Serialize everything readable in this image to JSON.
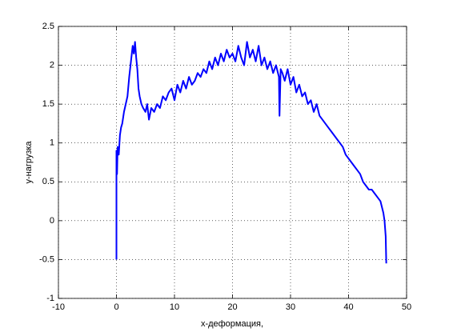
{
  "chart_data": {
    "type": "line",
    "xlabel": "x-деформация,",
    "ylabel": "y-нагрузка",
    "xlim": [
      -10,
      50
    ],
    "xticks": [
      -10,
      0,
      10,
      20,
      30,
      40,
      50
    ],
    "ylim": [
      -1,
      2.5
    ],
    "yticks": [
      -1,
      -0.5,
      0,
      0.5,
      1,
      1.5,
      2,
      2.5
    ],
    "grid": true,
    "x": [
      0,
      0,
      0.1,
      0.2,
      0.4,
      0.6,
      0.8,
      1.0,
      1.3,
      1.6,
      1.9,
      2.2,
      2.5,
      2.8,
      3.0,
      3.2,
      3.4,
      3.6,
      3.8,
      4.0,
      4.3,
      4.6,
      5.0,
      5.3,
      5.6,
      6.0,
      6.5,
      7,
      7.5,
      8,
      8.5,
      9,
      9.5,
      10,
      10.5,
      11,
      11.5,
      12,
      12.5,
      13,
      13.5,
      14,
      14.5,
      15,
      15.5,
      16,
      16.5,
      17,
      17.5,
      18,
      18.5,
      19,
      19.5,
      20,
      20.5,
      21,
      21.5,
      22,
      22.5,
      23,
      23.5,
      24,
      24.5,
      25,
      25.5,
      26,
      26.5,
      27,
      27.5,
      28,
      28.1,
      28.3,
      28.6,
      29,
      29.5,
      30,
      30.5,
      31,
      31.5,
      32,
      32.5,
      33,
      33.5,
      34,
      34.5,
      35,
      35.5,
      36,
      36.5,
      37,
      37.5,
      38,
      38.5,
      39,
      39.5,
      40,
      40.5,
      41,
      41.5,
      42,
      42.5,
      43,
      43.5,
      44,
      44.5,
      45,
      45.5,
      46,
      46.2,
      46.4,
      46.5
    ],
    "series": [
      {
        "color": "#0000ff",
        "values": [
          -0.5,
          0.9,
          0.6,
          0.95,
          0.85,
          1.1,
          1.2,
          1.25,
          1.4,
          1.5,
          1.6,
          1.85,
          2.05,
          2.25,
          2.15,
          2.3,
          2.1,
          1.95,
          1.7,
          1.6,
          1.5,
          1.45,
          1.4,
          1.5,
          1.3,
          1.45,
          1.4,
          1.5,
          1.45,
          1.6,
          1.55,
          1.65,
          1.7,
          1.55,
          1.75,
          1.65,
          1.8,
          1.7,
          1.85,
          1.75,
          1.8,
          1.9,
          1.85,
          1.95,
          1.9,
          2.05,
          1.95,
          2.1,
          2.0,
          2.15,
          2.05,
          2.2,
          2.1,
          2.15,
          2.05,
          2.25,
          2.1,
          2.0,
          2.3,
          2.1,
          2.2,
          2.05,
          2.25,
          2.0,
          2.1,
          1.95,
          2.05,
          1.9,
          2.0,
          1.85,
          1.35,
          1.95,
          1.9,
          1.8,
          1.95,
          1.75,
          1.85,
          1.65,
          1.75,
          1.6,
          1.65,
          1.5,
          1.55,
          1.4,
          1.5,
          1.35,
          1.3,
          1.25,
          1.2,
          1.15,
          1.1,
          1.05,
          1.0,
          0.95,
          0.85,
          0.8,
          0.75,
          0.7,
          0.65,
          0.6,
          0.5,
          0.45,
          0.4,
          0.4,
          0.35,
          0.3,
          0.25,
          0.1,
          0.0,
          -0.2,
          -0.55
        ]
      }
    ]
  }
}
